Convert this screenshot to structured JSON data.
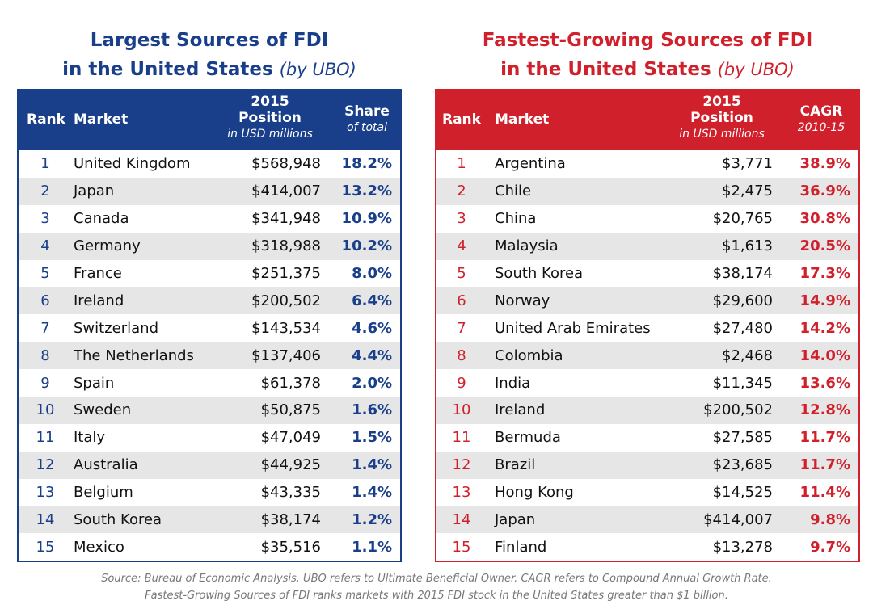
{
  "chart_data": [
    {
      "type": "table",
      "title": "Largest Sources of FDI in the United States",
      "title_line1": "Largest Sources of FDI",
      "title_line2": "in the United States",
      "title_suffix": "(by UBO)",
      "columns": {
        "rank": "Rank",
        "market": "Market",
        "position_line1": "2015",
        "position_line2": "Position",
        "position_unit": "in USD millions",
        "metric_line1": "Share",
        "metric_unit": "of total"
      },
      "accent_color": "#1a3f8a",
      "rows": [
        {
          "rank": "1",
          "market": "United Kingdom",
          "position": "$568,948",
          "share": "18.2%"
        },
        {
          "rank": "2",
          "market": "Japan",
          "position": "$414,007",
          "share": "13.2%"
        },
        {
          "rank": "3",
          "market": "Canada",
          "position": "$341,948",
          "share": "10.9%"
        },
        {
          "rank": "4",
          "market": "Germany",
          "position": "$318,988",
          "share": "10.2%"
        },
        {
          "rank": "5",
          "market": "France",
          "position": "$251,375",
          "share": "8.0%"
        },
        {
          "rank": "6",
          "market": "Ireland",
          "position": "$200,502",
          "share": "6.4%"
        },
        {
          "rank": "7",
          "market": "Switzerland",
          "position": "$143,534",
          "share": "4.6%"
        },
        {
          "rank": "8",
          "market": "The Netherlands",
          "position": "$137,406",
          "share": "4.4%"
        },
        {
          "rank": "9",
          "market": "Spain",
          "position": "$61,378",
          "share": "2.0%"
        },
        {
          "rank": "10",
          "market": "Sweden",
          "position": "$50,875",
          "share": "1.6%"
        },
        {
          "rank": "11",
          "market": "Italy",
          "position": "$47,049",
          "share": "1.5%"
        },
        {
          "rank": "12",
          "market": "Australia",
          "position": "$44,925",
          "share": "1.4%"
        },
        {
          "rank": "13",
          "market": "Belgium",
          "position": "$43,335",
          "share": "1.4%"
        },
        {
          "rank": "14",
          "market": "South Korea",
          "position": "$38,174",
          "share": "1.2%"
        },
        {
          "rank": "15",
          "market": "Mexico",
          "position": "$35,516",
          "share": "1.1%"
        }
      ]
    },
    {
      "type": "table",
      "title": "Fastest-Growing Sources of FDI in the United States",
      "title_line1": "Fastest-Growing Sources of FDI",
      "title_line2": "in the United States",
      "title_suffix": "(by UBO)",
      "columns": {
        "rank": "Rank",
        "market": "Market",
        "position_line1": "2015",
        "position_line2": "Position",
        "position_unit": "in USD millions",
        "metric_line1": "CAGR",
        "metric_unit": "2010-15"
      },
      "accent_color": "#d0202b",
      "rows": [
        {
          "rank": "1",
          "market": "Argentina",
          "position": "$3,771",
          "share": "38.9%"
        },
        {
          "rank": "2",
          "market": "Chile",
          "position": "$2,475",
          "share": "36.9%"
        },
        {
          "rank": "3",
          "market": "China",
          "position": "$20,765",
          "share": "30.8%"
        },
        {
          "rank": "4",
          "market": "Malaysia",
          "position": "$1,613",
          "share": "20.5%"
        },
        {
          "rank": "5",
          "market": "South Korea",
          "position": "$38,174",
          "share": "17.3%"
        },
        {
          "rank": "6",
          "market": "Norway",
          "position": "$29,600",
          "share": "14.9%"
        },
        {
          "rank": "7",
          "market": "United Arab Emirates",
          "position": "$27,480",
          "share": "14.2%"
        },
        {
          "rank": "8",
          "market": "Colombia",
          "position": "$2,468",
          "share": "14.0%"
        },
        {
          "rank": "9",
          "market": "India",
          "position": "$11,345",
          "share": "13.6%"
        },
        {
          "rank": "10",
          "market": "Ireland",
          "position": "$200,502",
          "share": "12.8%"
        },
        {
          "rank": "11",
          "market": "Bermuda",
          "position": "$27,585",
          "share": "11.7%"
        },
        {
          "rank": "12",
          "market": "Brazil",
          "position": "$23,685",
          "share": "11.7%"
        },
        {
          "rank": "13",
          "market": "Hong Kong",
          "position": "$14,525",
          "share": "11.4%"
        },
        {
          "rank": "14",
          "market": "Japan",
          "position": "$414,007",
          "share": "9.8%"
        },
        {
          "rank": "15",
          "market": "Finland",
          "position": "$13,278",
          "share": "9.7%"
        }
      ]
    }
  ],
  "footnote": {
    "line1": "Source:  Bureau of Economic Analysis.  UBO refers to Ultimate Beneficial Owner.  CAGR refers to Compound Annual Growth Rate.",
    "line2": "Fastest-Growing Sources of FDI ranks markets with 2015 FDI stock in the United States greater than $1 billion."
  }
}
